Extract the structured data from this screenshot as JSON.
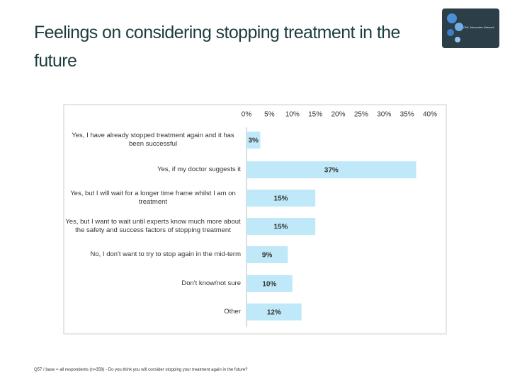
{
  "title": "Feelings on considering stopping treatment in the future",
  "logo_text": "CML Advocates Network",
  "footnote": "Q57 / base = all respondents (n=358) - Do you think you will consider stopping your treatment again in the future?",
  "chart_data": {
    "type": "bar",
    "orientation": "horizontal",
    "color": "#bfe9f8",
    "categories": [
      "Yes, I have already stopped treatment again and it has been successful",
      "Yes, if my doctor suggests it",
      "Yes, but I will wait for a longer time frame whilst I am on treatment",
      "Yes, but I want to wait until experts know much more about the safety and success factors of stopping treatment",
      "No, I don't want to try to stop again in the mid-term",
      "Don't know/not sure",
      "Other"
    ],
    "values": [
      3,
      37,
      15,
      15,
      9,
      10,
      12
    ],
    "value_labels": [
      "3%",
      "37%",
      "15%",
      "15%",
      "9%",
      "10%",
      "12%"
    ],
    "xlim": [
      0,
      40
    ],
    "xticks": [
      {
        "value": 0,
        "label": "0%"
      },
      {
        "value": 5,
        "label": "5%"
      },
      {
        "value": 10,
        "label": "10%"
      },
      {
        "value": 15,
        "label": "15%"
      },
      {
        "value": 20,
        "label": "20%"
      },
      {
        "value": 25,
        "label": "25%"
      },
      {
        "value": 30,
        "label": "30%"
      },
      {
        "value": 35,
        "label": "35%"
      },
      {
        "value": 40,
        "label": "40%"
      }
    ],
    "grid": false
  }
}
